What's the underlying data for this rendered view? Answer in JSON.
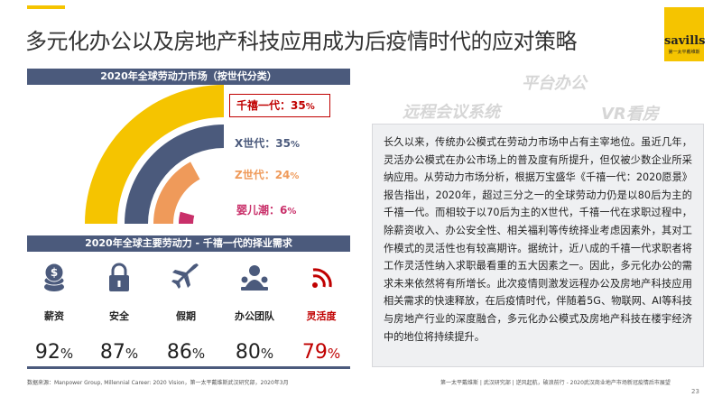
{
  "title": "多元化办公以及房地产科技应用成为后疫情时代的应对策略",
  "logo": {
    "name": "savills",
    "tagline": "第一太平戴维斯"
  },
  "chart_title": "2020年全球劳动力市场（按世代分类）",
  "chart_data": {
    "type": "pie",
    "title": "2020年全球劳动力市场（按世代分类）",
    "categories": [
      "千禧一代",
      "X世代",
      "Z世代",
      "婴儿潮"
    ],
    "values": [
      35,
      35,
      24,
      6
    ],
    "colors": [
      "#f5c400",
      "#4b5a7c",
      "#ef9a5a",
      "#c9306a"
    ],
    "display": [
      {
        "label": "千禧一代：",
        "value": "35",
        "unit": "%"
      },
      {
        "label": "X世代：",
        "value": "35",
        "unit": "%"
      },
      {
        "label": "Z世代：",
        "value": "24",
        "unit": "%"
      },
      {
        "label": "婴儿潮：",
        "value": "6",
        "unit": "%"
      }
    ]
  },
  "needs_title": "2020年全球主要劳动力 - 千禧一代的择业需求",
  "needs": [
    {
      "label": "薪资",
      "value": "92",
      "unit": "%",
      "icon": "money-icon",
      "color": "#4b5a7c",
      "value_color": "#222222"
    },
    {
      "label": "安全",
      "value": "87",
      "unit": "%",
      "icon": "lock-icon",
      "color": "#4b5a7c",
      "value_color": "#222222"
    },
    {
      "label": "假期",
      "value": "86",
      "unit": "%",
      "icon": "airplane-icon",
      "color": "#4b5a7c",
      "value_color": "#222222"
    },
    {
      "label": "办公团队",
      "value": "80",
      "unit": "%",
      "icon": "team-icon",
      "color": "#4b5a7c",
      "value_color": "#222222"
    },
    {
      "label": "灵活度",
      "value": "79",
      "unit": "%",
      "icon": "wifi-icon",
      "color": "#c00000",
      "value_color": "#c00000"
    }
  ],
  "ghost_words": [
    "平台办公",
    "远程会议系统",
    "VR看房"
  ],
  "paragraph": "长久以来，传统办公模式在劳动力市场中占有主宰地位。虽近几年，灵活办公模式在办公市场上的普及度有所提升，但仅被少数企业所采纳应用。从劳动力市场分析，根据万宝盛华《千禧一代：2020愿景》报告指出，2020年，超过三分之一的全球劳动力仍是以80后为主的千禧一代。而相较于以70后为主的X世代，千禧一代在求职过程中，除薪资收入、办公安全性、相关福利等传统择业考虑因素外，其对工作模式的灵活性也有较高期许。据统计，近八成的千禧一代求职者将工作灵活性纳入求职最看重的五大因素之一。因此，多元化办公的需求未来依然将有所增长。此次疫情则激发远程办公及房地产科技应用相关需求的快速释放，在后疫情时代，伴随着5G、物联网、AI等科技与房地产行业的深度融合，多元化办公模式及房地产科技在楼宇经济中的地位将持续提升。",
  "source": "数据来源：Manpower Group, Millennial Career: 2020 Vision，第一太平戴维斯武汉研究部，2020年3月",
  "footer": "第一太平戴维斯 | 武汉研究部 | 逆风起航，破浪前行 - 2020武汉商业地产市场新冠疫情后市展望",
  "page_number": "23"
}
